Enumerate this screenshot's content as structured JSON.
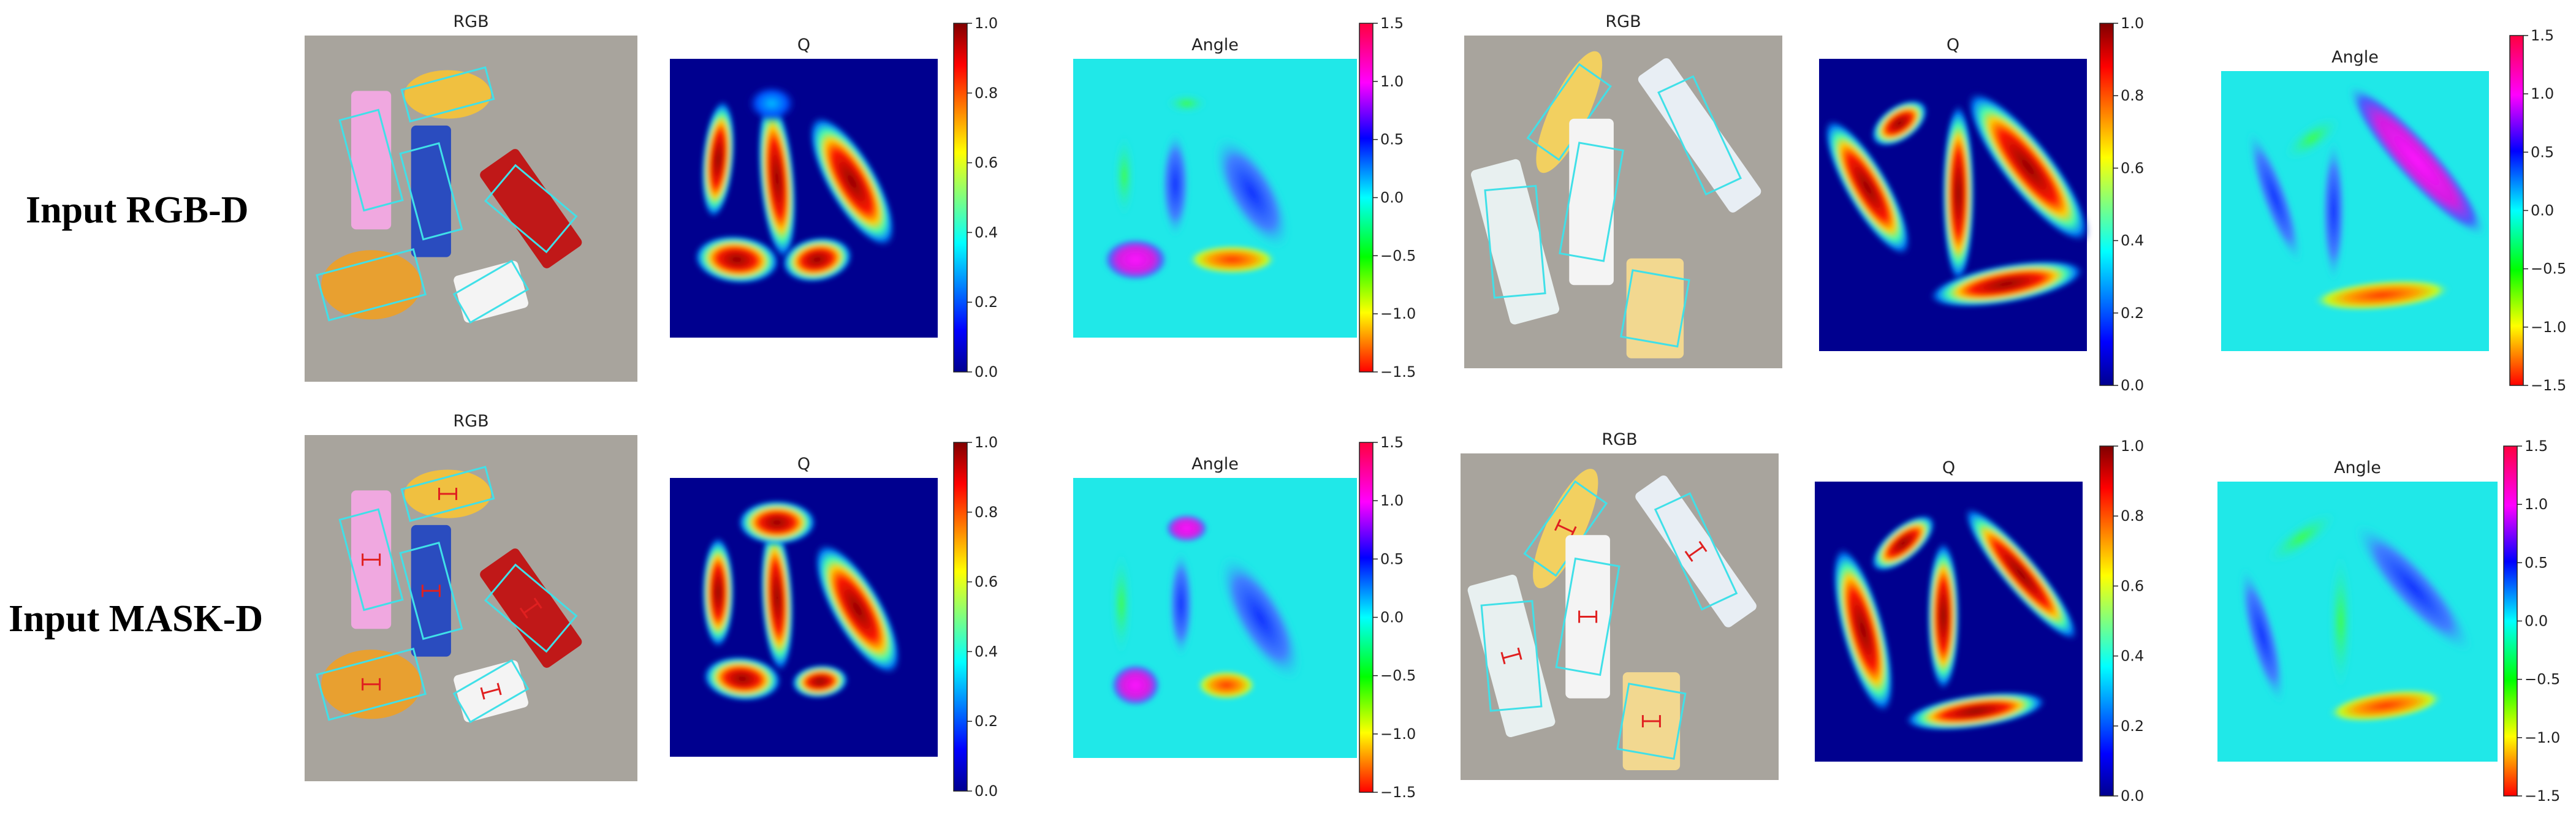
{
  "rows": [
    {
      "label": "Input RGB-D",
      "panels": [
        {
          "title": "RGB",
          "type": "image"
        },
        {
          "title": "Q",
          "type": "heatmap",
          "colorbar": "jet",
          "cb_ticks": [
            "1.0",
            "0.8",
            "0.6",
            "0.4",
            "0.2",
            "0.0"
          ]
        },
        {
          "title": "Angle",
          "type": "heatmap",
          "colorbar": "hsv",
          "cb_ticks": [
            "1.5",
            "1.0",
            "0.5",
            "0.0",
            "−0.5",
            "−1.0",
            "−1.5"
          ]
        },
        {
          "title": "RGB",
          "type": "image"
        },
        {
          "title": "Q",
          "type": "heatmap",
          "colorbar": "jet",
          "cb_ticks": [
            "1.0",
            "0.8",
            "0.6",
            "0.4",
            "0.2",
            "0.0"
          ]
        },
        {
          "title": "Angle",
          "type": "heatmap",
          "colorbar": "hsv",
          "cb_ticks": [
            "1.5",
            "1.0",
            "0.5",
            "0.0",
            "−0.5",
            "−1.0",
            "−1.5"
          ]
        }
      ]
    },
    {
      "label": "Input MASK-D",
      "panels": [
        {
          "title": "RGB",
          "type": "image"
        },
        {
          "title": "Q",
          "type": "heatmap",
          "colorbar": "jet",
          "cb_ticks": [
            "1.0",
            "0.8",
            "0.6",
            "0.4",
            "0.2",
            "0.0"
          ]
        },
        {
          "title": "Angle",
          "type": "heatmap",
          "colorbar": "hsv",
          "cb_ticks": [
            "1.5",
            "1.0",
            "0.5",
            "0.0",
            "−0.5",
            "−1.0",
            "−1.5"
          ]
        },
        {
          "title": "RGB",
          "type": "image"
        },
        {
          "title": "Q",
          "type": "heatmap",
          "colorbar": "jet",
          "cb_ticks": [
            "1.0",
            "0.8",
            "0.6",
            "0.4",
            "0.2",
            "0.0"
          ]
        },
        {
          "title": "Angle",
          "type": "heatmap",
          "colorbar": "hsv",
          "cb_ticks": [
            "1.5",
            "1.0",
            "0.5",
            "0.0",
            "−0.5",
            "−1.0",
            "−1.5"
          ]
        }
      ]
    }
  ],
  "chart_data": [
    {
      "type": "heatmap",
      "title": "Q",
      "colorbar_range": [
        0.0,
        1.0
      ],
      "colorbar_ticks": [
        0.0,
        0.2,
        0.4,
        0.6,
        0.8,
        1.0
      ]
    },
    {
      "type": "heatmap",
      "title": "Angle",
      "colorbar_range": [
        -1.5,
        1.5
      ],
      "colorbar_ticks": [
        -1.5,
        -1.0,
        -0.5,
        0.0,
        0.5,
        1.0,
        1.5
      ]
    }
  ],
  "colors": {
    "q_background": "#00008f",
    "angle_background": "#20e8e8",
    "rgb_background": "#a8a49d",
    "grasp_box": "#40e0e8",
    "grasp_mark": "#e02020"
  }
}
